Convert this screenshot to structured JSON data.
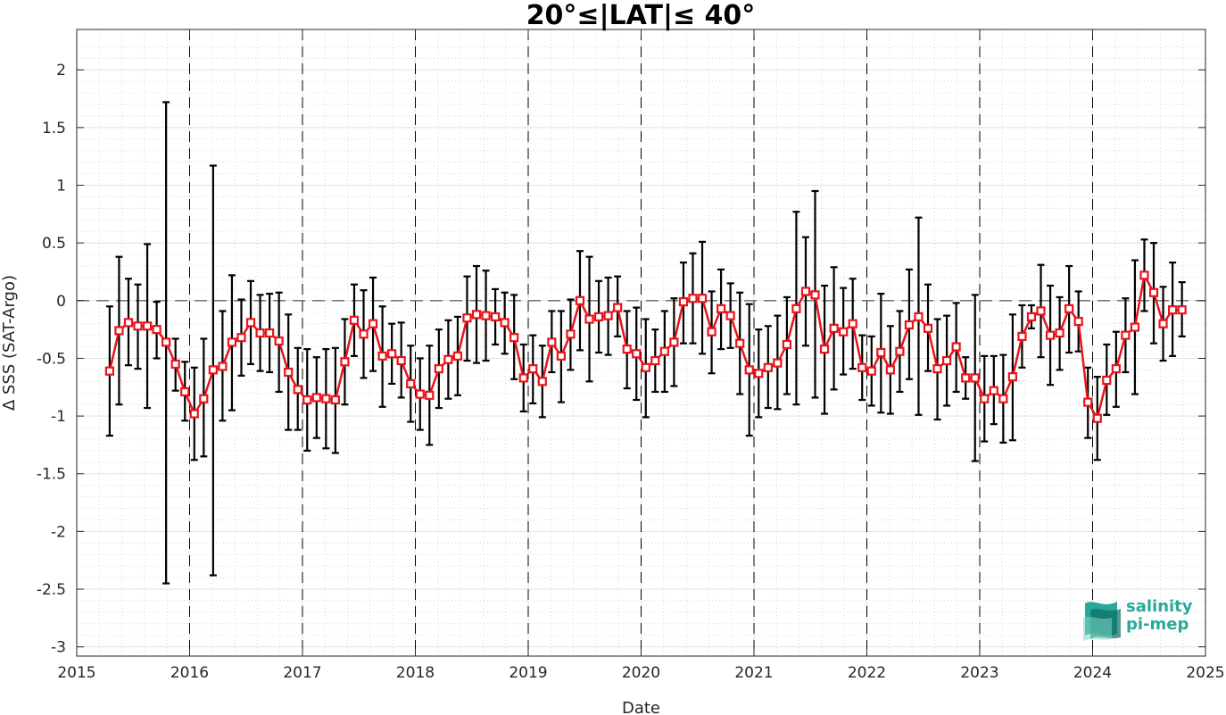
{
  "chart_data": {
    "type": "line",
    "title": "20°≤|LAT|≤ 40°",
    "xlabel": "Date",
    "ylabel": "Δ SSS (SAT-Argo)",
    "xlim": [
      2015,
      2025
    ],
    "ylim": [
      -3.08,
      2.35
    ],
    "x_ticks": [
      2015,
      2016,
      2017,
      2018,
      2019,
      2020,
      2021,
      2022,
      2023,
      2024,
      2025
    ],
    "x_tick_labels": [
      "2015",
      "2016",
      "2017",
      "2018",
      "2019",
      "2020",
      "2021",
      "2022",
      "2023",
      "2024",
      "2025"
    ],
    "y_ticks": [
      2,
      1.5,
      1,
      0.5,
      0,
      -0.5,
      -1,
      -1.5,
      -2,
      -2.5,
      -3
    ],
    "y_tick_labels": [
      "2",
      "1.5",
      "1",
      "0.5",
      "0",
      "-0.5",
      "-1",
      "-1.5",
      "-2",
      "-2.5",
      "-3"
    ],
    "grid": true,
    "minor_grid": true,
    "year_marker_lines": "dashed vertical at each year",
    "zero_line": "dashed horizontal at 0",
    "series": [
      {
        "color": "#e8141c",
        "marker": "square",
        "errorbar_color": "#000000",
        "points": [
          {
            "x": "2015-04",
            "y": -0.61,
            "lo": -1.17,
            "hi": -0.05
          },
          {
            "x": "2015-05",
            "y": -0.26,
            "lo": -0.9,
            "hi": 0.38
          },
          {
            "x": "2015-06",
            "y": -0.19,
            "lo": -0.56,
            "hi": 0.19
          },
          {
            "x": "2015-07",
            "y": -0.22,
            "lo": -0.59,
            "hi": 0.14
          },
          {
            "x": "2015-08",
            "y": -0.22,
            "lo": -0.93,
            "hi": 0.49
          },
          {
            "x": "2015-09",
            "y": -0.25,
            "lo": -0.5,
            "hi": -0.01
          },
          {
            "x": "2015-10",
            "y": -0.36,
            "lo": -2.45,
            "hi": 1.72
          },
          {
            "x": "2015-11",
            "y": -0.55,
            "lo": -0.78,
            "hi": -0.33
          },
          {
            "x": "2015-12",
            "y": -0.79,
            "lo": -1.04,
            "hi": -0.53
          },
          {
            "x": "2016-01",
            "y": -0.98,
            "lo": -1.38,
            "hi": -0.58
          },
          {
            "x": "2016-02",
            "y": -0.85,
            "lo": -1.35,
            "hi": -0.33
          },
          {
            "x": "2016-03",
            "y": -0.6,
            "lo": -2.38,
            "hi": 1.17
          },
          {
            "x": "2016-04",
            "y": -0.57,
            "lo": -1.04,
            "hi": -0.09
          },
          {
            "x": "2016-05",
            "y": -0.36,
            "lo": -0.95,
            "hi": 0.22
          },
          {
            "x": "2016-06",
            "y": -0.32,
            "lo": -0.65,
            "hi": 0.01
          },
          {
            "x": "2016-07",
            "y": -0.19,
            "lo": -0.55,
            "hi": 0.17
          },
          {
            "x": "2016-08",
            "y": -0.28,
            "lo": -0.61,
            "hi": 0.05
          },
          {
            "x": "2016-09",
            "y": -0.28,
            "lo": -0.62,
            "hi": 0.06
          },
          {
            "x": "2016-10",
            "y": -0.35,
            "lo": -0.79,
            "hi": 0.07
          },
          {
            "x": "2016-11",
            "y": -0.62,
            "lo": -1.12,
            "hi": -0.12
          },
          {
            "x": "2016-12",
            "y": -0.77,
            "lo": -1.12,
            "hi": -0.41
          },
          {
            "x": "2017-01",
            "y": -0.86,
            "lo": -1.3,
            "hi": -0.42
          },
          {
            "x": "2017-02",
            "y": -0.84,
            "lo": -1.19,
            "hi": -0.49
          },
          {
            "x": "2017-03",
            "y": -0.85,
            "lo": -1.28,
            "hi": -0.42
          },
          {
            "x": "2017-04",
            "y": -0.86,
            "lo": -1.32,
            "hi": -0.41
          },
          {
            "x": "2017-05",
            "y": -0.53,
            "lo": -0.9,
            "hi": -0.16
          },
          {
            "x": "2017-06",
            "y": -0.17,
            "lo": -0.48,
            "hi": 0.14
          },
          {
            "x": "2017-07",
            "y": -0.29,
            "lo": -0.67,
            "hi": 0.09
          },
          {
            "x": "2017-08",
            "y": -0.2,
            "lo": -0.61,
            "hi": 0.2
          },
          {
            "x": "2017-09",
            "y": -0.48,
            "lo": -0.92,
            "hi": -0.05
          },
          {
            "x": "2017-10",
            "y": -0.46,
            "lo": -0.72,
            "hi": -0.2
          },
          {
            "x": "2017-11",
            "y": -0.52,
            "lo": -0.84,
            "hi": -0.19
          },
          {
            "x": "2017-12",
            "y": -0.72,
            "lo": -1.05,
            "hi": -0.39
          },
          {
            "x": "2018-01",
            "y": -0.81,
            "lo": -1.12,
            "hi": -0.5
          },
          {
            "x": "2018-02",
            "y": -0.82,
            "lo": -1.25,
            "hi": -0.39
          },
          {
            "x": "2018-03",
            "y": -0.59,
            "lo": -0.93,
            "hi": -0.25
          },
          {
            "x": "2018-04",
            "y": -0.51,
            "lo": -0.85,
            "hi": -0.17
          },
          {
            "x": "2018-05",
            "y": -0.48,
            "lo": -0.82,
            "hi": -0.14
          },
          {
            "x": "2018-06",
            "y": -0.15,
            "lo": -0.52,
            "hi": 0.21
          },
          {
            "x": "2018-07",
            "y": -0.12,
            "lo": -0.54,
            "hi": 0.3
          },
          {
            "x": "2018-08",
            "y": -0.13,
            "lo": -0.52,
            "hi": 0.26
          },
          {
            "x": "2018-09",
            "y": -0.14,
            "lo": -0.38,
            "hi": 0.1
          },
          {
            "x": "2018-10",
            "y": -0.19,
            "lo": -0.46,
            "hi": 0.07
          },
          {
            "x": "2018-11",
            "y": -0.32,
            "lo": -0.68,
            "hi": 0.05
          },
          {
            "x": "2018-12",
            "y": -0.67,
            "lo": -0.96,
            "hi": -0.38
          },
          {
            "x": "2019-01",
            "y": -0.59,
            "lo": -0.89,
            "hi": -0.3
          },
          {
            "x": "2019-02",
            "y": -0.7,
            "lo": -1.01,
            "hi": -0.39
          },
          {
            "x": "2019-03",
            "y": -0.36,
            "lo": -0.62,
            "hi": -0.09
          },
          {
            "x": "2019-04",
            "y": -0.48,
            "lo": -0.88,
            "hi": -0.09
          },
          {
            "x": "2019-05",
            "y": -0.29,
            "lo": -0.6,
            "hi": 0.01
          },
          {
            "x": "2019-06",
            "y": 0.0,
            "lo": -0.43,
            "hi": 0.43
          },
          {
            "x": "2019-07",
            "y": -0.16,
            "lo": -0.7,
            "hi": 0.38
          },
          {
            "x": "2019-08",
            "y": -0.14,
            "lo": -0.45,
            "hi": 0.17
          },
          {
            "x": "2019-09",
            "y": -0.13,
            "lo": -0.47,
            "hi": 0.2
          },
          {
            "x": "2019-10",
            "y": -0.06,
            "lo": -0.31,
            "hi": 0.21
          },
          {
            "x": "2019-11",
            "y": -0.42,
            "lo": -0.76,
            "hi": -0.09
          },
          {
            "x": "2019-12",
            "y": -0.46,
            "lo": -0.86,
            "hi": -0.06
          },
          {
            "x": "2020-01",
            "y": -0.58,
            "lo": -1.01,
            "hi": -0.16
          },
          {
            "x": "2020-02",
            "y": -0.52,
            "lo": -0.79,
            "hi": -0.25
          },
          {
            "x": "2020-03",
            "y": -0.44,
            "lo": -0.79,
            "hi": -0.09
          },
          {
            "x": "2020-04",
            "y": -0.36,
            "lo": -0.74,
            "hi": 0.02
          },
          {
            "x": "2020-05",
            "y": -0.01,
            "lo": -0.37,
            "hi": 0.33
          },
          {
            "x": "2020-06",
            "y": 0.02,
            "lo": -0.37,
            "hi": 0.41
          },
          {
            "x": "2020-07",
            "y": 0.02,
            "lo": -0.46,
            "hi": 0.51
          },
          {
            "x": "2020-08",
            "y": -0.27,
            "lo": -0.63,
            "hi": 0.08
          },
          {
            "x": "2020-09",
            "y": -0.07,
            "lo": -0.42,
            "hi": 0.27
          },
          {
            "x": "2020-10",
            "y": -0.13,
            "lo": -0.41,
            "hi": 0.15
          },
          {
            "x": "2020-11",
            "y": -0.37,
            "lo": -0.81,
            "hi": 0.07
          },
          {
            "x": "2020-12",
            "y": -0.6,
            "lo": -1.17,
            "hi": -0.03
          },
          {
            "x": "2021-01",
            "y": -0.63,
            "lo": -1.01,
            "hi": -0.25
          },
          {
            "x": "2021-02",
            "y": -0.58,
            "lo": -0.93,
            "hi": -0.22
          },
          {
            "x": "2021-03",
            "y": -0.54,
            "lo": -0.94,
            "hi": -0.13
          },
          {
            "x": "2021-04",
            "y": -0.38,
            "lo": -0.81,
            "hi": 0.03
          },
          {
            "x": "2021-05",
            "y": -0.07,
            "lo": -0.9,
            "hi": 0.77
          },
          {
            "x": "2021-06",
            "y": 0.08,
            "lo": -0.39,
            "hi": 0.55
          },
          {
            "x": "2021-07",
            "y": 0.05,
            "lo": -0.84,
            "hi": 0.95
          },
          {
            "x": "2021-08",
            "y": -0.42,
            "lo": -0.98,
            "hi": 0.13
          },
          {
            "x": "2021-09",
            "y": -0.24,
            "lo": -0.77,
            "hi": 0.29
          },
          {
            "x": "2021-10",
            "y": -0.27,
            "lo": -0.64,
            "hi": 0.11
          },
          {
            "x": "2021-11",
            "y": -0.2,
            "lo": -0.59,
            "hi": 0.19
          },
          {
            "x": "2021-12",
            "y": -0.58,
            "lo": -0.86,
            "hi": -0.3
          },
          {
            "x": "2022-01",
            "y": -0.61,
            "lo": -0.91,
            "hi": -0.31
          },
          {
            "x": "2022-02",
            "y": -0.45,
            "lo": -0.97,
            "hi": 0.06
          },
          {
            "x": "2022-03",
            "y": -0.6,
            "lo": -0.98,
            "hi": -0.22
          },
          {
            "x": "2022-04",
            "y": -0.44,
            "lo": -0.79,
            "hi": -0.09
          },
          {
            "x": "2022-05",
            "y": -0.21,
            "lo": -0.68,
            "hi": 0.27
          },
          {
            "x": "2022-06",
            "y": -0.14,
            "lo": -0.99,
            "hi": 0.72
          },
          {
            "x": "2022-07",
            "y": -0.24,
            "lo": -0.61,
            "hi": 0.14
          },
          {
            "x": "2022-08",
            "y": -0.59,
            "lo": -1.03,
            "hi": -0.16
          },
          {
            "x": "2022-09",
            "y": -0.52,
            "lo": -0.91,
            "hi": -0.13
          },
          {
            "x": "2022-10",
            "y": -0.4,
            "lo": -0.79,
            "hi": -0.02
          },
          {
            "x": "2022-11",
            "y": -0.67,
            "lo": -0.85,
            "hi": -0.49
          },
          {
            "x": "2022-12",
            "y": -0.67,
            "lo": -1.39,
            "hi": 0.05
          },
          {
            "x": "2023-01",
            "y": -0.85,
            "lo": -1.22,
            "hi": -0.48
          },
          {
            "x": "2023-02",
            "y": -0.78,
            "lo": -1.07,
            "hi": -0.48
          },
          {
            "x": "2023-03",
            "y": -0.85,
            "lo": -1.23,
            "hi": -0.47
          },
          {
            "x": "2023-04",
            "y": -0.66,
            "lo": -1.21,
            "hi": -0.12
          },
          {
            "x": "2023-05",
            "y": -0.31,
            "lo": -0.58,
            "hi": -0.04
          },
          {
            "x": "2023-06",
            "y": -0.14,
            "lo": -0.24,
            "hi": -0.04
          },
          {
            "x": "2023-07",
            "y": -0.09,
            "lo": -0.49,
            "hi": 0.31
          },
          {
            "x": "2023-08",
            "y": -0.3,
            "lo": -0.73,
            "hi": 0.13
          },
          {
            "x": "2023-09",
            "y": -0.28,
            "lo": -0.6,
            "hi": 0.03
          },
          {
            "x": "2023-10",
            "y": -0.07,
            "lo": -0.45,
            "hi": 0.3
          },
          {
            "x": "2023-11",
            "y": -0.18,
            "lo": -0.44,
            "hi": 0.08
          },
          {
            "x": "2023-12",
            "y": -0.88,
            "lo": -1.19,
            "hi": -0.58
          },
          {
            "x": "2024-01",
            "y": -1.02,
            "lo": -1.38,
            "hi": -0.66
          },
          {
            "x": "2024-02",
            "y": -0.69,
            "lo": -0.99,
            "hi": -0.38
          },
          {
            "x": "2024-03",
            "y": -0.59,
            "lo": -0.92,
            "hi": -0.27
          },
          {
            "x": "2024-04",
            "y": -0.3,
            "lo": -0.62,
            "hi": 0.02
          },
          {
            "x": "2024-05",
            "y": -0.23,
            "lo": -0.81,
            "hi": 0.35
          },
          {
            "x": "2024-06",
            "y": 0.22,
            "lo": -0.09,
            "hi": 0.53
          },
          {
            "x": "2024-07",
            "y": 0.07,
            "lo": -0.37,
            "hi": 0.5
          },
          {
            "x": "2024-08",
            "y": -0.2,
            "lo": -0.52,
            "hi": 0.12
          },
          {
            "x": "2024-09",
            "y": -0.08,
            "lo": -0.48,
            "hi": 0.33
          },
          {
            "x": "2024-10",
            "y": -0.08,
            "lo": -0.31,
            "hi": 0.16
          }
        ]
      }
    ]
  },
  "logo": {
    "line1": "salinity",
    "line2": "pi-mep",
    "colors": [
      "#2aa89a",
      "#0d6e63",
      "#7fd6c4"
    ]
  }
}
